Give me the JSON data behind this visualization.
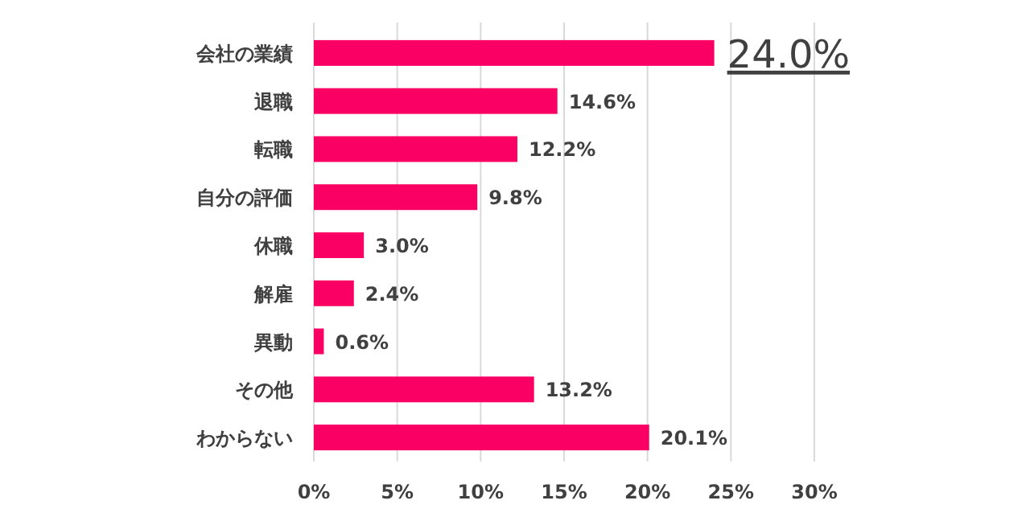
{
  "chart_data": {
    "type": "bar",
    "orientation": "horizontal",
    "categories": [
      "会社の業績",
      "退職",
      "転職",
      "自分の評価",
      "休職",
      "解雇",
      "異動",
      "その他",
      "わからない"
    ],
    "values": [
      24.0,
      14.6,
      12.2,
      9.8,
      3.0,
      2.4,
      0.6,
      13.2,
      20.1
    ],
    "value_labels": [
      "24.0%",
      "14.6%",
      "12.2%",
      "9.8%",
      "3.0%",
      "2.4%",
      "0.6%",
      "13.2%",
      "20.1%"
    ],
    "color": "#fa0064",
    "xlim": [
      0,
      30
    ],
    "xticks": [
      {
        "value": 0,
        "label": "0%"
      },
      {
        "value": 5,
        "label": "5%"
      },
      {
        "value": 10,
        "label": "10%"
      },
      {
        "value": 15,
        "label": "15%"
      },
      {
        "value": 20,
        "label": "20%"
      },
      {
        "value": 25,
        "label": "25%"
      },
      {
        "value": 30,
        "label": "30%"
      }
    ],
    "grid": "x"
  }
}
